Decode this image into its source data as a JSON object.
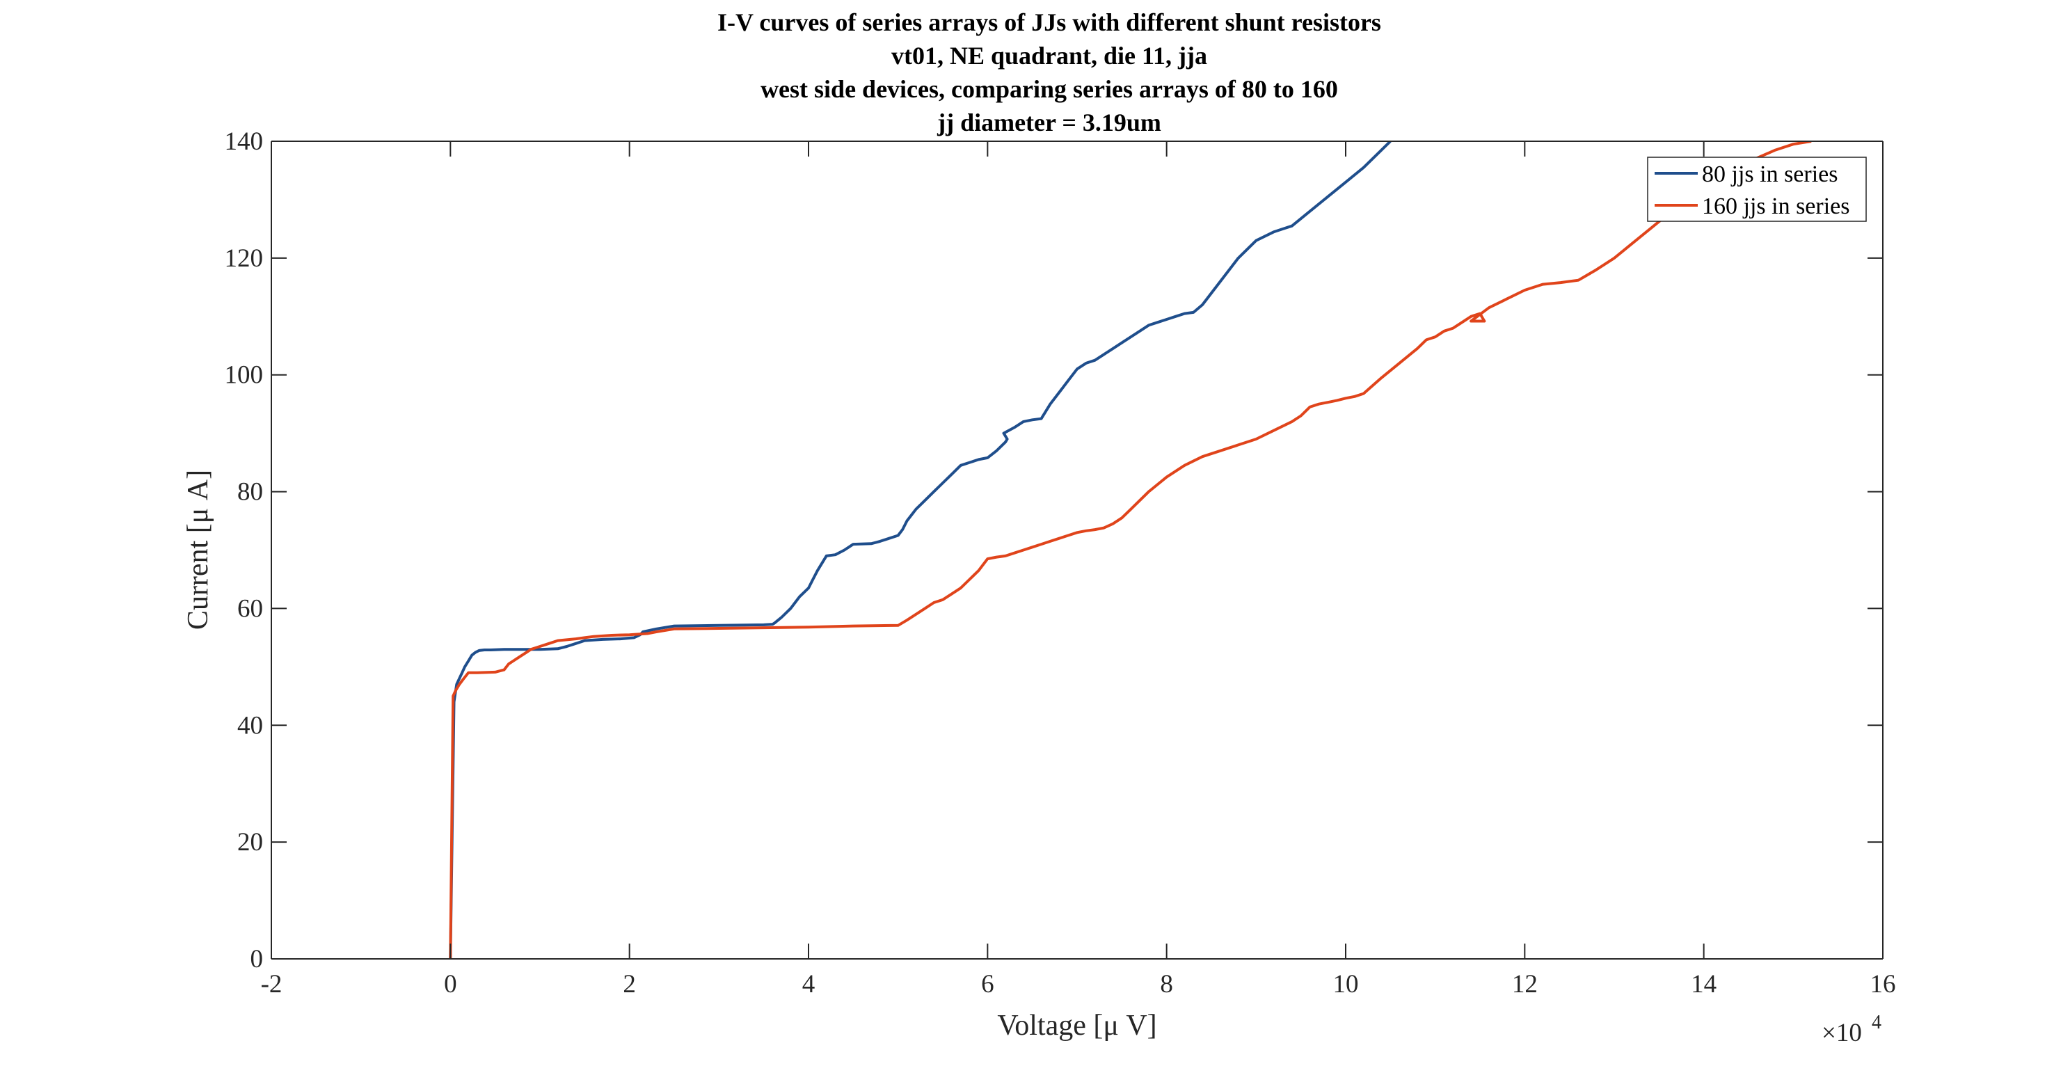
{
  "chart_data": {
    "type": "line",
    "title": [
      "I-V curves of series arrays of JJs with different shunt resistors",
      "vt01, NE quadrant, die 11, jja",
      "west side devices, comparing series arrays of 80 to 160",
      "jj diameter = 3.19um"
    ],
    "xlabel": "Voltage [μ V]",
    "ylabel": "Current [μ A]",
    "x_exponent_label": "×10",
    "x_exponent_power": "4",
    "xlim": [
      -2,
      16
    ],
    "ylim": [
      0,
      140
    ],
    "x_unit_multiplier": 10000,
    "xticks": [
      -2,
      0,
      2,
      4,
      6,
      8,
      10,
      12,
      14,
      16
    ],
    "xtick_labels": [
      "-2",
      "0",
      "2",
      "4",
      "6",
      "8",
      "10",
      "12",
      "14",
      "16"
    ],
    "yticks": [
      0,
      20,
      40,
      60,
      80,
      100,
      120,
      140
    ],
    "ytick_labels": [
      "0",
      "20",
      "40",
      "60",
      "80",
      "100",
      "120",
      "140"
    ],
    "grid": false,
    "legend_position": "top-right",
    "series": [
      {
        "name": "80 jjs in series",
        "color": "#1f4e8c",
        "x": [
          0.0,
          0.04,
          0.07,
          0.1,
          0.13,
          0.16,
          0.2,
          0.24,
          0.28,
          0.32,
          0.38,
          0.45,
          0.6,
          0.8,
          1.0,
          1.2,
          1.3,
          1.4,
          1.5,
          1.7,
          1.9,
          2.05,
          2.12,
          2.15,
          2.3,
          2.5,
          3.0,
          3.5,
          3.6,
          3.62,
          3.7,
          3.8,
          3.85,
          3.9,
          4.0,
          4.05,
          4.1,
          4.2,
          4.3,
          4.4,
          4.5,
          4.7,
          4.8,
          4.9,
          5.0,
          5.05,
          5.1,
          5.2,
          5.3,
          5.4,
          5.5,
          5.6,
          5.7,
          5.8,
          5.9,
          6.0,
          6.1,
          6.2,
          6.22,
          6.18,
          6.3,
          6.4,
          6.5,
          6.6,
          6.7,
          6.8,
          6.9,
          7.0,
          7.1,
          7.2,
          7.3,
          7.4,
          7.5,
          7.6,
          7.7,
          7.8,
          7.9,
          8.0,
          8.1,
          8.2,
          8.3,
          8.4,
          8.6,
          8.8,
          9.0,
          9.2,
          9.3,
          9.4,
          9.6,
          9.8,
          10.0,
          10.2,
          10.4,
          10.5
        ],
        "y": [
          0,
          44,
          47,
          48,
          49,
          50,
          51,
          52,
          52.5,
          52.8,
          52.9,
          52.9,
          53.0,
          53.0,
          53.0,
          53.1,
          53.5,
          54.0,
          54.5,
          54.7,
          54.8,
          55.0,
          55.5,
          56.0,
          56.5,
          57.0,
          57.1,
          57.2,
          57.3,
          57.5,
          58.5,
          60.0,
          61.0,
          62.0,
          63.5,
          65.0,
          66.5,
          69.0,
          69.2,
          70.0,
          71.0,
          71.1,
          71.5,
          72.0,
          72.5,
          73.5,
          75.0,
          77.0,
          78.5,
          80.0,
          81.5,
          83.0,
          84.5,
          85.0,
          85.5,
          85.8,
          87.0,
          88.5,
          89.0,
          90.0,
          91.0,
          92.0,
          92.3,
          92.5,
          95.0,
          97.0,
          99.0,
          101.0,
          102.0,
          102.5,
          103.5,
          104.5,
          105.5,
          106.5,
          107.5,
          108.5,
          109.0,
          109.5,
          110.0,
          110.5,
          110.7,
          112.0,
          116.0,
          120.0,
          123.0,
          124.5,
          125.0,
          125.5,
          128.0,
          130.5,
          133.0,
          135.5,
          138.5,
          140.0
        ]
      },
      {
        "name": "160 jjs in series",
        "color": "#e0441b",
        "x": [
          0.0,
          0.03,
          0.06,
          0.1,
          0.15,
          0.2,
          0.3,
          0.5,
          0.6,
          0.65,
          0.7,
          0.75,
          0.8,
          0.85,
          0.9,
          1.0,
          1.1,
          1.2,
          1.4,
          1.5,
          1.6,
          1.8,
          2.0,
          2.2,
          2.3,
          2.5,
          3.0,
          3.5,
          4.0,
          4.5,
          5.0,
          5.1,
          5.2,
          5.3,
          5.4,
          5.5,
          5.6,
          5.7,
          5.8,
          5.9,
          6.0,
          6.1,
          6.2,
          6.3,
          6.4,
          6.5,
          6.6,
          6.7,
          6.8,
          6.9,
          7.0,
          7.1,
          7.2,
          7.3,
          7.4,
          7.5,
          7.6,
          7.8,
          8.0,
          8.2,
          8.4,
          8.6,
          8.8,
          9.0,
          9.2,
          9.4,
          9.5,
          9.6,
          9.7,
          9.8,
          9.9,
          10.0,
          10.1,
          10.2,
          10.4,
          10.6,
          10.8,
          10.9,
          11.0,
          11.1,
          11.2,
          11.3,
          11.4,
          11.5,
          11.55,
          11.4,
          11.6,
          11.8,
          12.0,
          12.2,
          12.4,
          12.5,
          12.6,
          12.8,
          13.0,
          13.2,
          13.4,
          13.6,
          13.8,
          14.0,
          14.2,
          14.5,
          14.8,
          15.0,
          15.2
        ],
        "y": [
          0,
          45,
          46,
          47,
          48,
          49.0,
          49.0,
          49.1,
          49.5,
          50.5,
          51.0,
          51.5,
          52.0,
          52.5,
          53.0,
          53.5,
          54.0,
          54.5,
          54.8,
          55.0,
          55.2,
          55.4,
          55.5,
          55.7,
          56.0,
          56.5,
          56.6,
          56.7,
          56.8,
          57.0,
          57.1,
          58.0,
          59.0,
          60.0,
          61.0,
          61.5,
          62.5,
          63.5,
          65.0,
          66.5,
          68.5,
          68.8,
          69.0,
          69.5,
          70.0,
          70.5,
          71.0,
          71.5,
          72.0,
          72.5,
          73.0,
          73.3,
          73.5,
          73.8,
          74.5,
          75.5,
          77.0,
          80.0,
          82.5,
          84.5,
          86.0,
          87.0,
          88.0,
          89.0,
          90.5,
          92.0,
          93.0,
          94.5,
          95.0,
          95.3,
          95.6,
          96.0,
          96.3,
          96.8,
          99.5,
          102.0,
          104.5,
          106.0,
          106.5,
          107.5,
          108.0,
          109.0,
          110.0,
          110.5,
          109.2,
          109.2,
          111.5,
          113.0,
          114.5,
          115.5,
          115.8,
          116.0,
          116.2,
          118.0,
          120.0,
          122.5,
          125.0,
          127.5,
          130.0,
          132.5,
          134.5,
          136.5,
          138.5,
          139.5,
          140.0
        ]
      }
    ]
  }
}
